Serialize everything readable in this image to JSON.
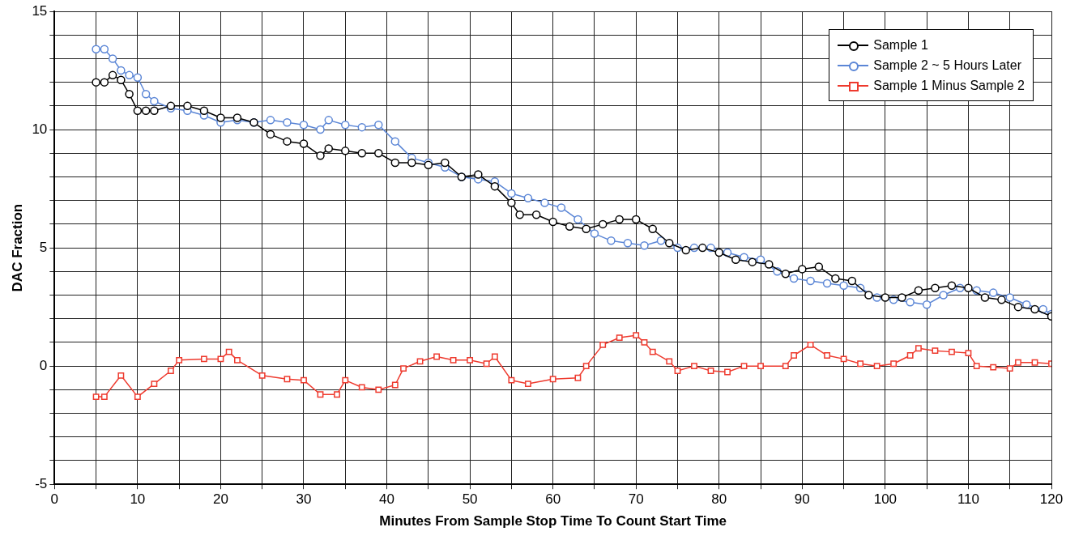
{
  "chart_data": {
    "type": "line",
    "xlabel": "Minutes From Sample Stop Time To Count Start Time",
    "ylabel": "DAC Fraction",
    "xlim": [
      0,
      120
    ],
    "ylim": [
      -5,
      15
    ],
    "xticks": [
      0,
      {
        "value": 5,
        "label": null
      },
      10,
      {
        "value": 15,
        "label": null
      },
      20,
      {
        "value": 25,
        "label": null
      },
      30,
      {
        "value": 35,
        "label": null
      },
      40,
      {
        "value": 45,
        "label": null
      },
      50,
      {
        "value": 55,
        "label": null
      },
      60,
      {
        "value": 65,
        "label": null
      },
      70,
      {
        "value": 75,
        "label": null
      },
      80,
      {
        "value": 85,
        "label": null
      },
      90,
      {
        "value": 95,
        "label": null
      },
      100,
      {
        "value": 105,
        "label": null
      },
      110,
      {
        "value": 115,
        "label": null
      },
      120
    ],
    "yticks": [
      -5,
      {
        "value": -4,
        "label": null
      },
      {
        "value": -3,
        "label": null
      },
      {
        "value": -2,
        "label": null
      },
      {
        "value": -1,
        "label": null
      },
      0,
      {
        "value": 1,
        "label": null
      },
      {
        "value": 2,
        "label": null
      },
      {
        "value": 3,
        "label": null
      },
      {
        "value": 4,
        "label": null
      },
      5,
      {
        "value": 6,
        "label": null
      },
      {
        "value": 7,
        "label": null
      },
      {
        "value": 8,
        "label": null
      },
      {
        "value": 9,
        "label": null
      },
      10,
      {
        "value": 11,
        "label": null
      },
      {
        "value": 12,
        "label": null
      },
      {
        "value": 13,
        "label": null
      },
      {
        "value": 14,
        "label": null
      },
      15
    ],
    "grid": true,
    "legend": "top right",
    "line_style": "solid",
    "series": [
      {
        "name": "Sample 1",
        "color": "#000000",
        "marker": "circle",
        "x": [
          5,
          6,
          7,
          8,
          9,
          10,
          11,
          12,
          14,
          16,
          18,
          20,
          22,
          24,
          26,
          28,
          30,
          32,
          33,
          35,
          37,
          39,
          41,
          43,
          45,
          47,
          49,
          51,
          53,
          55,
          56,
          58,
          60,
          62,
          64,
          66,
          68,
          70,
          72,
          74,
          76,
          78,
          80,
          82,
          84,
          86,
          88,
          90,
          92,
          94,
          96,
          98,
          100,
          102,
          104,
          106,
          108,
          110,
          112,
          114,
          116,
          118,
          120
        ],
        "values": [
          12.0,
          12.0,
          12.3,
          12.1,
          11.5,
          10.8,
          10.8,
          10.8,
          11.0,
          11.0,
          10.8,
          10.5,
          10.5,
          10.3,
          9.8,
          9.5,
          9.4,
          8.9,
          9.2,
          9.1,
          9.0,
          9.0,
          8.6,
          8.6,
          8.5,
          8.6,
          8.0,
          8.1,
          7.6,
          6.9,
          6.4,
          6.4,
          6.1,
          5.9,
          5.8,
          6.0,
          6.2,
          6.2,
          5.8,
          5.2,
          4.9,
          5.0,
          4.8,
          4.5,
          4.4,
          4.3,
          3.9,
          4.1,
          4.2,
          3.7,
          3.6,
          3.0,
          2.9,
          2.9,
          3.2,
          3.3,
          3.4,
          3.3,
          2.9,
          2.8,
          2.5,
          2.4,
          2.1
        ]
      },
      {
        "name": "Sample 2 ~ 5 Hours Later",
        "color": "#5b86d6",
        "marker": "circle",
        "x": [
          5,
          6,
          7,
          8,
          9,
          10,
          11,
          12,
          14,
          16,
          18,
          20,
          22,
          24,
          26,
          28,
          30,
          32,
          33,
          35,
          37,
          39,
          41,
          43,
          45,
          47,
          49,
          51,
          53,
          55,
          57,
          59,
          61,
          63,
          65,
          67,
          69,
          71,
          73,
          75,
          77,
          79,
          81,
          83,
          85,
          87,
          89,
          91,
          93,
          95,
          97,
          99,
          101,
          103,
          105,
          107,
          109,
          111,
          113,
          115,
          117,
          119,
          120
        ],
        "values": [
          13.4,
          13.4,
          13.0,
          12.5,
          12.3,
          12.2,
          11.5,
          11.2,
          10.9,
          10.8,
          10.6,
          10.3,
          10.4,
          10.3,
          10.4,
          10.3,
          10.2,
          10.0,
          10.4,
          10.2,
          10.1,
          10.2,
          9.5,
          8.8,
          8.6,
          8.4,
          8.0,
          7.9,
          7.8,
          7.3,
          7.1,
          6.9,
          6.7,
          6.2,
          5.6,
          5.3,
          5.2,
          5.1,
          5.3,
          5.0,
          5.0,
          5.0,
          4.8,
          4.6,
          4.5,
          4.0,
          3.7,
          3.6,
          3.5,
          3.4,
          3.3,
          2.9,
          2.8,
          2.7,
          2.6,
          3.0,
          3.3,
          3.2,
          3.1,
          2.9,
          2.6,
          2.4,
          2.2
        ]
      },
      {
        "name": "Sample 1 Minus Sample 2",
        "color": "#ee3a2e",
        "marker": "square",
        "x": [
          5,
          6,
          8,
          10,
          12,
          14,
          15,
          18,
          20,
          21,
          22,
          25,
          28,
          30,
          32,
          34,
          35,
          37,
          39,
          41,
          42,
          44,
          46,
          48,
          50,
          52,
          53,
          55,
          57,
          60,
          63,
          64,
          66,
          68,
          70,
          71,
          72,
          74,
          75,
          77,
          79,
          81,
          83,
          85,
          88,
          89,
          91,
          93,
          95,
          97,
          99,
          101,
          103,
          104,
          106,
          108,
          110,
          111,
          113,
          115,
          116,
          118,
          120
        ],
        "values": [
          -1.3,
          -1.3,
          -0.4,
          -1.3,
          -0.75,
          -0.2,
          0.25,
          0.3,
          0.3,
          0.6,
          0.25,
          -0.4,
          -0.55,
          -0.6,
          -1.2,
          -1.2,
          -0.6,
          -0.9,
          -1.0,
          -0.8,
          -0.1,
          0.2,
          0.4,
          0.25,
          0.25,
          0.1,
          0.4,
          -0.6,
          -0.75,
          -0.55,
          -0.5,
          0.0,
          0.9,
          1.2,
          1.3,
          1.0,
          0.6,
          0.2,
          -0.2,
          0.0,
          -0.2,
          -0.25,
          0.0,
          0.0,
          0.0,
          0.45,
          0.9,
          0.45,
          0.3,
          0.1,
          0.0,
          0.1,
          0.45,
          0.75,
          0.65,
          0.6,
          0.55,
          0.0,
          -0.05,
          -0.1,
          0.15,
          0.15,
          0.1
        ]
      }
    ]
  }
}
